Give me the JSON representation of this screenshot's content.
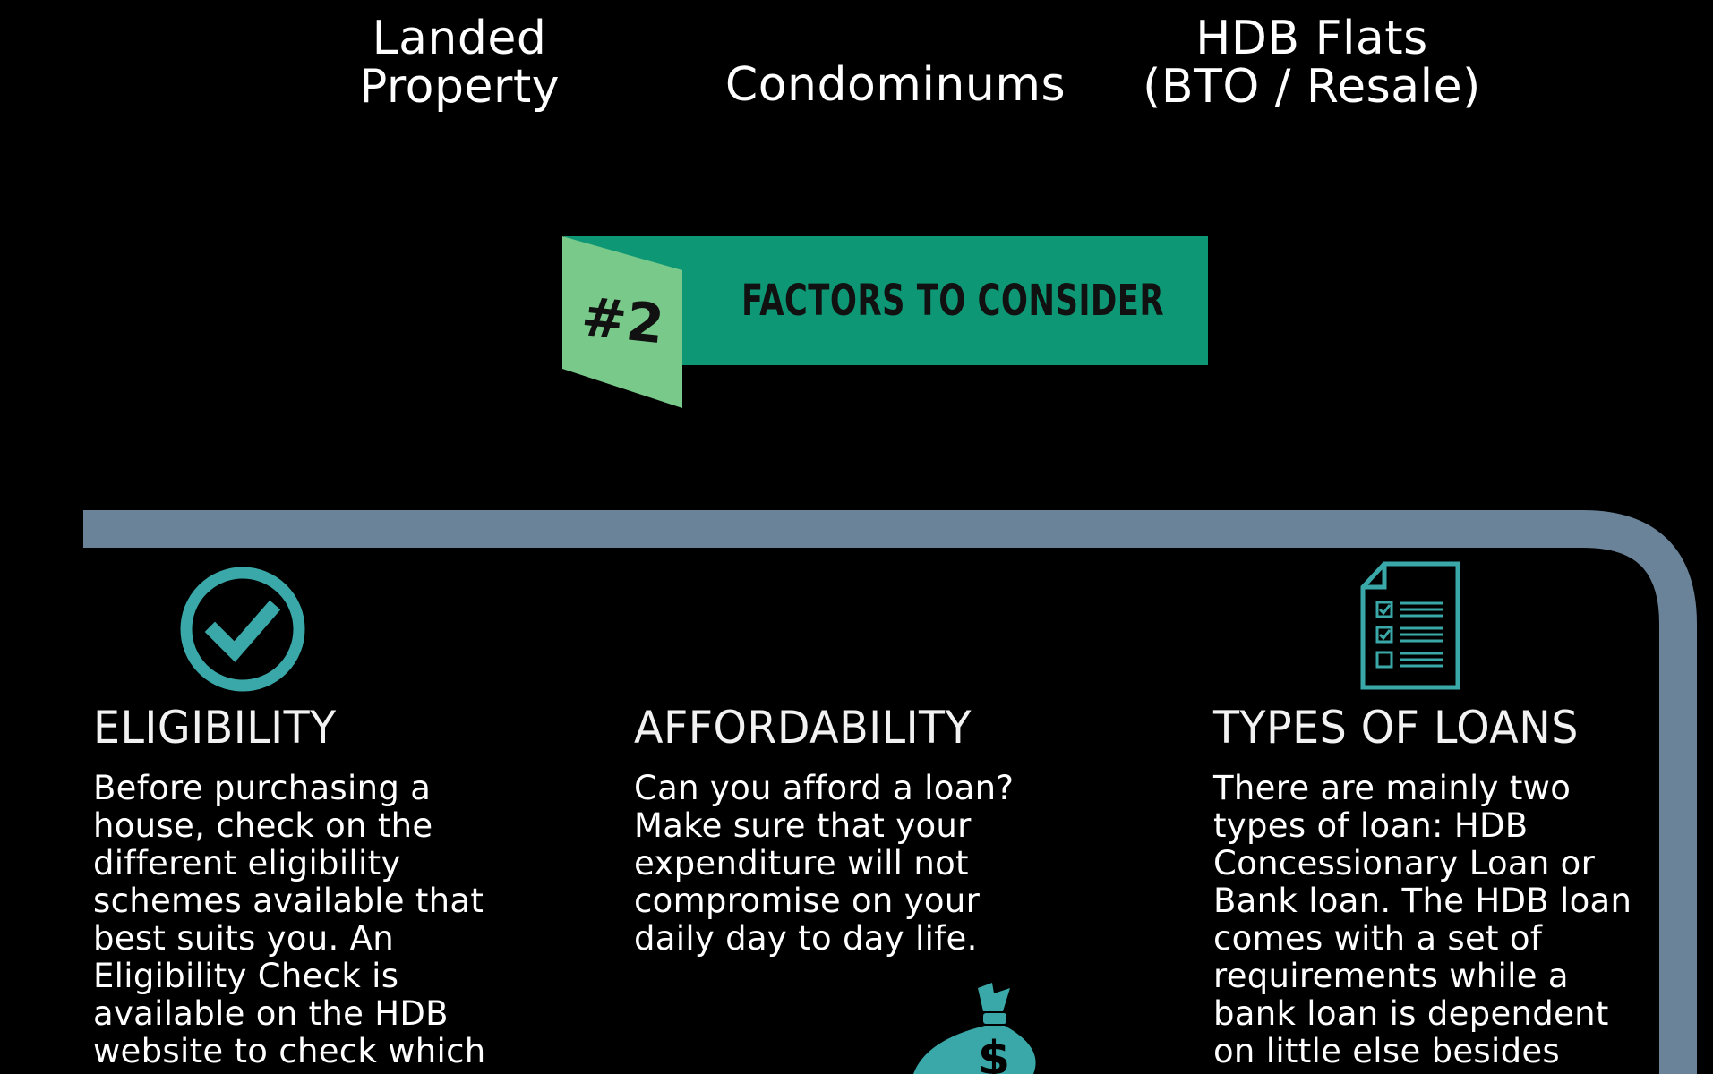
{
  "property_types": [
    {
      "lines": [
        "Landed",
        "Property"
      ]
    },
    {
      "lines": [
        "Condominums"
      ]
    },
    {
      "lines": [
        "HDB Flats",
        "(BTO / Resale)"
      ]
    }
  ],
  "section": {
    "badge": "#2",
    "title": "FACTORS TO CONSIDER"
  },
  "factors": [
    {
      "icon": "check-circle-icon",
      "title": "ELIGIBILITY",
      "text": "Before purchasing a house, check on the different eligibility schemes available that best suits you. An Eligibility Check is available on the HDB website to check which"
    },
    {
      "icon": "money-bag-icon",
      "title": "AFFORDABILITY",
      "text": "Can you afford a loan? Make sure that your expenditure will not compromise on your daily day to day life."
    },
    {
      "icon": "checklist-document-icon",
      "title": "TYPES OF LOANS",
      "text": "There are mainly two types of loan: HDB Concessionary Loan or Bank loan. The HDB loan comes with a set of requirements while a bank loan is dependent on little else besides"
    }
  ],
  "colors": {
    "background": "#000000",
    "banner_green": "#0e9775",
    "badge_green": "#78c98a",
    "frame_blue_gray": "#6a8399",
    "icon_teal": "#3aa8a8",
    "text": "#ffffff"
  }
}
